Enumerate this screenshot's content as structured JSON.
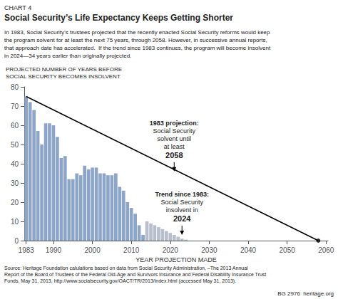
{
  "chart_data": {
    "type": "bar",
    "chart_number": "CHART 4",
    "title": "Social Security’s Life Expectancy Keeps Getting Shorter",
    "subtitle": [
      "In 1983, Social Security’s trustees projected that the recently enacted Social Security reforms would keep",
      "the program solvent for at least the next 75 years, through 2058. However, in successive annual reports,",
      "that approach date has accelerated.  If the trend since 1983 continues, the program will become insolvent",
      "in 2024—34 years earlier than originally projected."
    ],
    "ylabel": "PROJECTED NUMBER OF YEARS BEFORE\nSOCIAL SECURITY BECOMES INSOLVENT",
    "xlabel": "YEAR PROJECTION MADE",
    "series": [
      {
        "type": "bar",
        "color": "#8ca5c8",
        "x": [
          1983,
          1984,
          1985,
          1986,
          1987,
          1988,
          1989,
          1990,
          1991,
          1992,
          1993,
          1994,
          1995,
          1996,
          1997,
          1998,
          1999,
          2000,
          2001,
          2002,
          2003,
          2004,
          2005,
          2006,
          2007,
          2008,
          2009,
          2010,
          2011,
          2012,
          2013
        ],
        "values": [
          75,
          72,
          68,
          57,
          50,
          61,
          61,
          60,
          54,
          43,
          44,
          32,
          32,
          35,
          34,
          39,
          37,
          38,
          38,
          35,
          35,
          34,
          34,
          35,
          28,
          26,
          20,
          17,
          14,
          8,
          3
        ]
      },
      {
        "type": "bar",
        "color": "#b8bfcc",
        "x": [
          2014,
          2015,
          2016,
          2017,
          2018,
          2019,
          2020,
          2021,
          2022,
          2023,
          2024
        ],
        "values": [
          10,
          9,
          8,
          7,
          6,
          5,
          4,
          3,
          2,
          1,
          0.5
        ]
      },
      {
        "type": "line",
        "color": "black",
        "x": [
          1983,
          2058
        ],
        "values": [
          75,
          0
        ]
      },
      {
        "type": "scatter",
        "color": "black",
        "marker": "circle",
        "x": [
          2058
        ],
        "values": [
          0
        ]
      }
    ],
    "annotations": [
      {
        "x": 2021,
        "y": 36,
        "text": [
          "1983 projection:",
          "Social Security\nsolvent until\nat least",
          "2058"
        ]
      },
      {
        "x": 2023,
        "y": 3,
        "text": [
          "Trend since 1983:",
          "Social Security\ninsolvent in",
          "2024"
        ]
      }
    ],
    "xlim": [
      1982.5,
      2060.5
    ],
    "ylim": [
      0,
      80
    ],
    "xticks": [
      1983,
      1990,
      2000,
      2010,
      2020,
      2030,
      2040,
      2050,
      2060
    ],
    "yticks": [
      0,
      10,
      20,
      30,
      40,
      50,
      60,
      70,
      80
    ],
    "grid": false,
    "source": [
      "Source: Heritage Foundation calulations based on data from Social Security Administration, –The 2013 Annual",
      "Report of the Board of Trustees of the Federal Old-Age and Survivors Insurance and Federal Disability Insurance Trust",
      "Funds, May 31, 2013, http://www.socialsecurity.gov/OACT/TR/2013/index.html (accessed May 31, 2013)."
    ],
    "credit": "BG 2976  heritage.org"
  }
}
